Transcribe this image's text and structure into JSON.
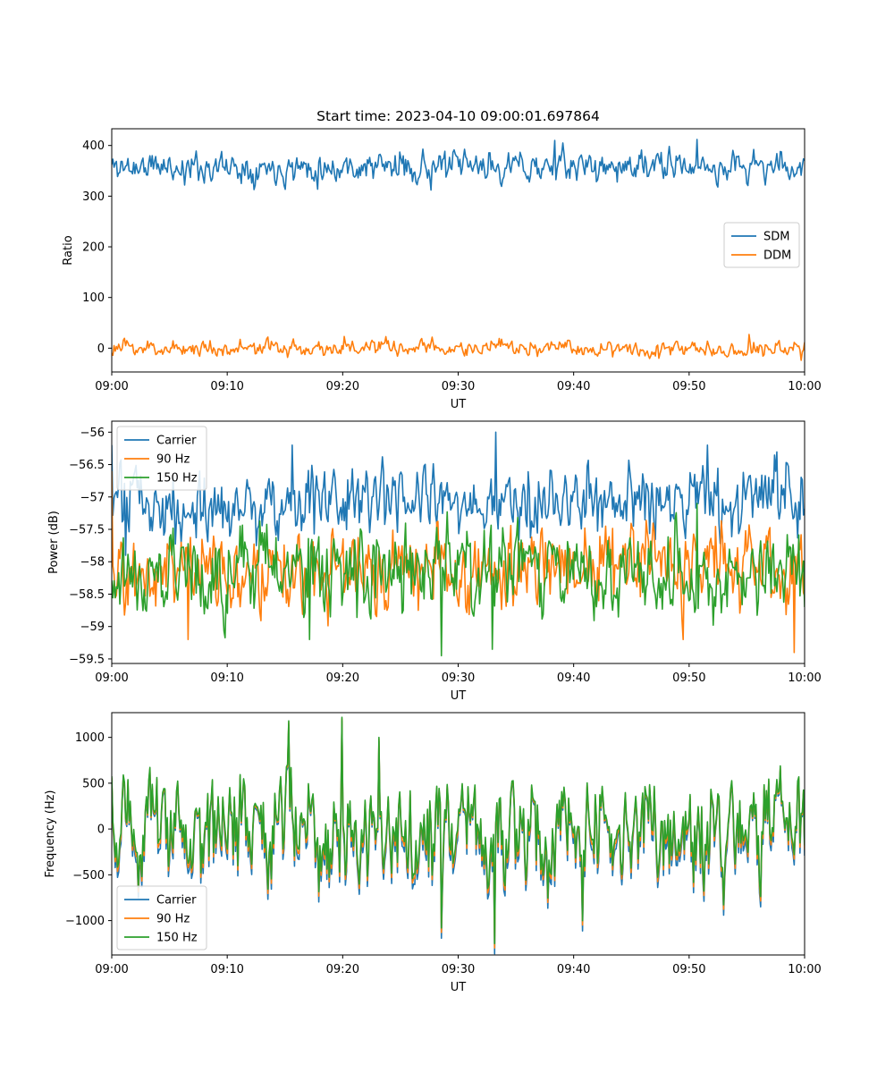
{
  "colors": {
    "blue": "#1f77b4",
    "orange": "#ff7f0e",
    "green": "#2ca02c"
  },
  "chart_data": [
    {
      "type": "line",
      "title": "Start time: 2023-04-10 09:00:01.697864",
      "xlabel": "UT",
      "ylabel": "Ratio",
      "xlim": [
        "09:00",
        "10:00"
      ],
      "ylim": [
        -47,
        433
      ],
      "x_ticks": [
        "09:00",
        "09:10",
        "09:20",
        "09:30",
        "09:40",
        "09:50",
        "10:00"
      ],
      "y_ticks": [
        0,
        100,
        200,
        300,
        400
      ],
      "legend_position": "center-right",
      "grid": false,
      "samples": 600,
      "series": [
        {
          "name": "SDM",
          "color": "#1f77b4",
          "mean": 358,
          "spread": 17,
          "seed": 11,
          "spikes": [
            [
              0.46,
              312
            ],
            [
              0.64,
              410
            ],
            [
              0.845,
              412
            ],
            [
              0.105,
              322
            ],
            [
              0.875,
              318
            ]
          ]
        },
        {
          "name": "DDM",
          "color": "#ff7f0e",
          "mean": 0,
          "spread": 9,
          "seed": 23,
          "spikes": [
            [
              0.92,
              27
            ],
            [
              0.995,
              -24
            ],
            [
              0.79,
              -20
            ],
            [
              0.335,
              23
            ]
          ]
        }
      ]
    },
    {
      "type": "line",
      "title": "",
      "xlabel": "UT",
      "ylabel": "Power (dB)",
      "xlim": [
        "09:00",
        "10:00"
      ],
      "ylim": [
        -59.57,
        -55.83
      ],
      "x_ticks": [
        "09:00",
        "09:10",
        "09:20",
        "09:30",
        "09:40",
        "09:50",
        "10:00"
      ],
      "y_ticks": [
        -59.5,
        -59.0,
        -58.5,
        -58.0,
        -57.5,
        -57.0,
        -56.5,
        -56.0
      ],
      "legend_position": "upper-left",
      "grid": false,
      "samples": 600,
      "series": [
        {
          "name": "Carrier",
          "color": "#1f77b4",
          "mean": -57.1,
          "spread": 0.33,
          "seed": 31,
          "spikes": [
            [
              0.0,
              -56.2
            ],
            [
              0.26,
              -56.2
            ],
            [
              0.555,
              -56.0
            ],
            [
              0.86,
              -56.2
            ],
            [
              0.02,
              -57.9
            ]
          ]
        },
        {
          "name": "90 Hz",
          "color": "#ff7f0e",
          "mean": -58.1,
          "spread": 0.35,
          "seed": 47,
          "spikes": [
            [
              0.0,
              -56.6
            ],
            [
              0.985,
              -59.4
            ],
            [
              0.825,
              -59.2
            ],
            [
              0.11,
              -59.2
            ]
          ]
        },
        {
          "name": "150 Hz",
          "color": "#2ca02c",
          "mean": -58.15,
          "spread": 0.38,
          "seed": 59,
          "spikes": [
            [
              0.475,
              -59.45
            ],
            [
              0.55,
              -59.35
            ],
            [
              0.285,
              -59.2
            ],
            [
              0.845,
              -57.1
            ]
          ]
        }
      ]
    },
    {
      "type": "line",
      "title": "",
      "xlabel": "UT",
      "ylabel": "Frequency (Hz)",
      "xlim": [
        "09:00",
        "10:00"
      ],
      "ylim": [
        -1375,
        1270
      ],
      "x_ticks": [
        "09:00",
        "09:10",
        "09:20",
        "09:30",
        "09:40",
        "09:50",
        "10:00"
      ],
      "y_ticks": [
        -1000,
        -500,
        0,
        500,
        1000
      ],
      "legend_position": "lower-left",
      "grid": false,
      "samples": 600,
      "base": {
        "mean": 0,
        "spread": 320,
        "seed": 73,
        "spikes": [
          [
            0.333,
            1220
          ],
          [
            0.255,
            1180
          ],
          [
            0.552,
            -1250
          ],
          [
            0.475,
            -1080
          ],
          [
            0.68,
            -1000
          ],
          [
            0.385,
            1000
          ]
        ]
      },
      "series": [
        {
          "name": "Carrier",
          "color": "#1f77b4",
          "offset": -70
        },
        {
          "name": "90 Hz",
          "color": "#ff7f0e",
          "offset": -30
        },
        {
          "name": "150 Hz",
          "color": "#2ca02c",
          "offset": 0
        }
      ]
    }
  ]
}
